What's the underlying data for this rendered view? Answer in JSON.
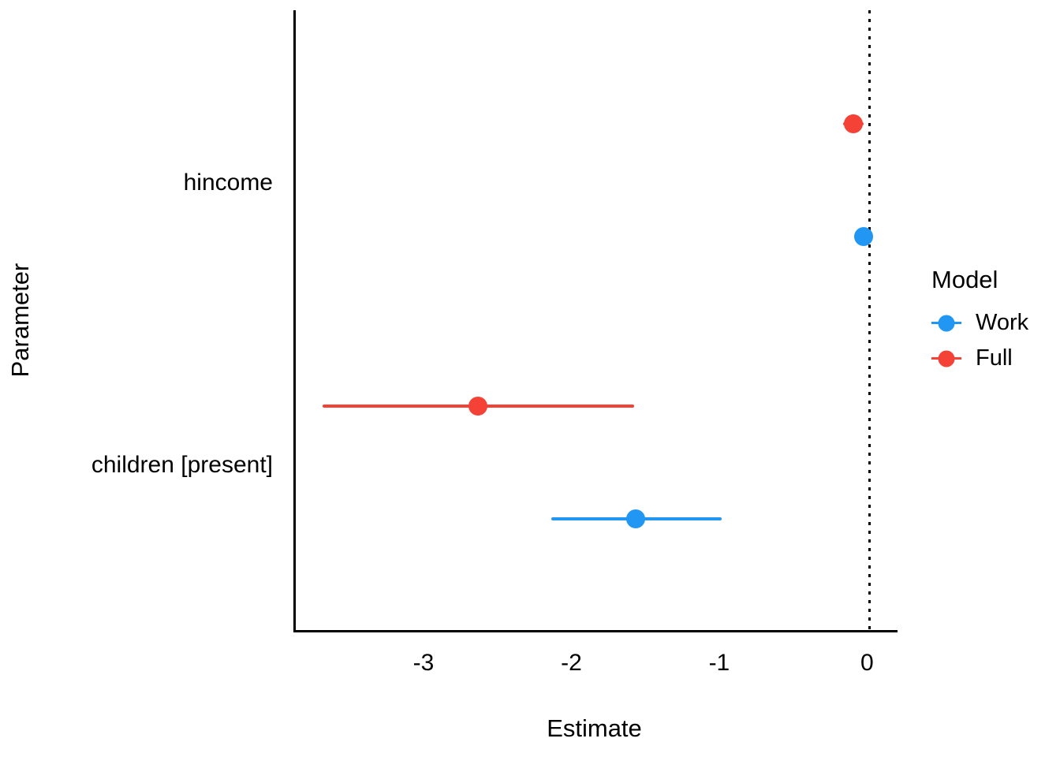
{
  "chart_data": {
    "type": "scatter",
    "subtype": "coefficient-dot-whisker",
    "title": "",
    "xlabel": "Estimate",
    "ylabel": "Parameter",
    "xlim": [
      -3.88,
      0.19
    ],
    "xticks": [
      -3,
      -2,
      -1,
      0
    ],
    "xtick_labels": [
      "-3",
      "-2",
      "-1",
      "0"
    ],
    "grid": false,
    "reference_line_x": 0,
    "categories": [
      "hincome",
      "children [present]"
    ],
    "legend": {
      "title": "Model",
      "position": "right",
      "entries": [
        {
          "name": "Work",
          "color": "#2196F3"
        },
        {
          "name": "Full",
          "color": "#F44336"
        }
      ]
    },
    "series": [
      {
        "name": "Work",
        "color": "#2196F3",
        "points": [
          {
            "param": "hincome",
            "estimate": -0.04,
            "ci": [
              -0.08,
              0.0
            ]
          },
          {
            "param": "children [present]",
            "estimate": -1.58,
            "ci": [
              -2.15,
              -1.0
            ]
          }
        ]
      },
      {
        "name": "Full",
        "color": "#F44336",
        "points": [
          {
            "param": "hincome",
            "estimate": -0.11,
            "ci": [
              -0.18,
              -0.04
            ]
          },
          {
            "param": "children [present]",
            "estimate": -2.65,
            "ci": [
              -3.7,
              -1.59
            ]
          }
        ]
      }
    ],
    "colors": {
      "axis_line": "#000000",
      "text": "#000000",
      "background": "#ffffff",
      "work_blue": "#2196F3",
      "full_red": "#F44336"
    }
  }
}
